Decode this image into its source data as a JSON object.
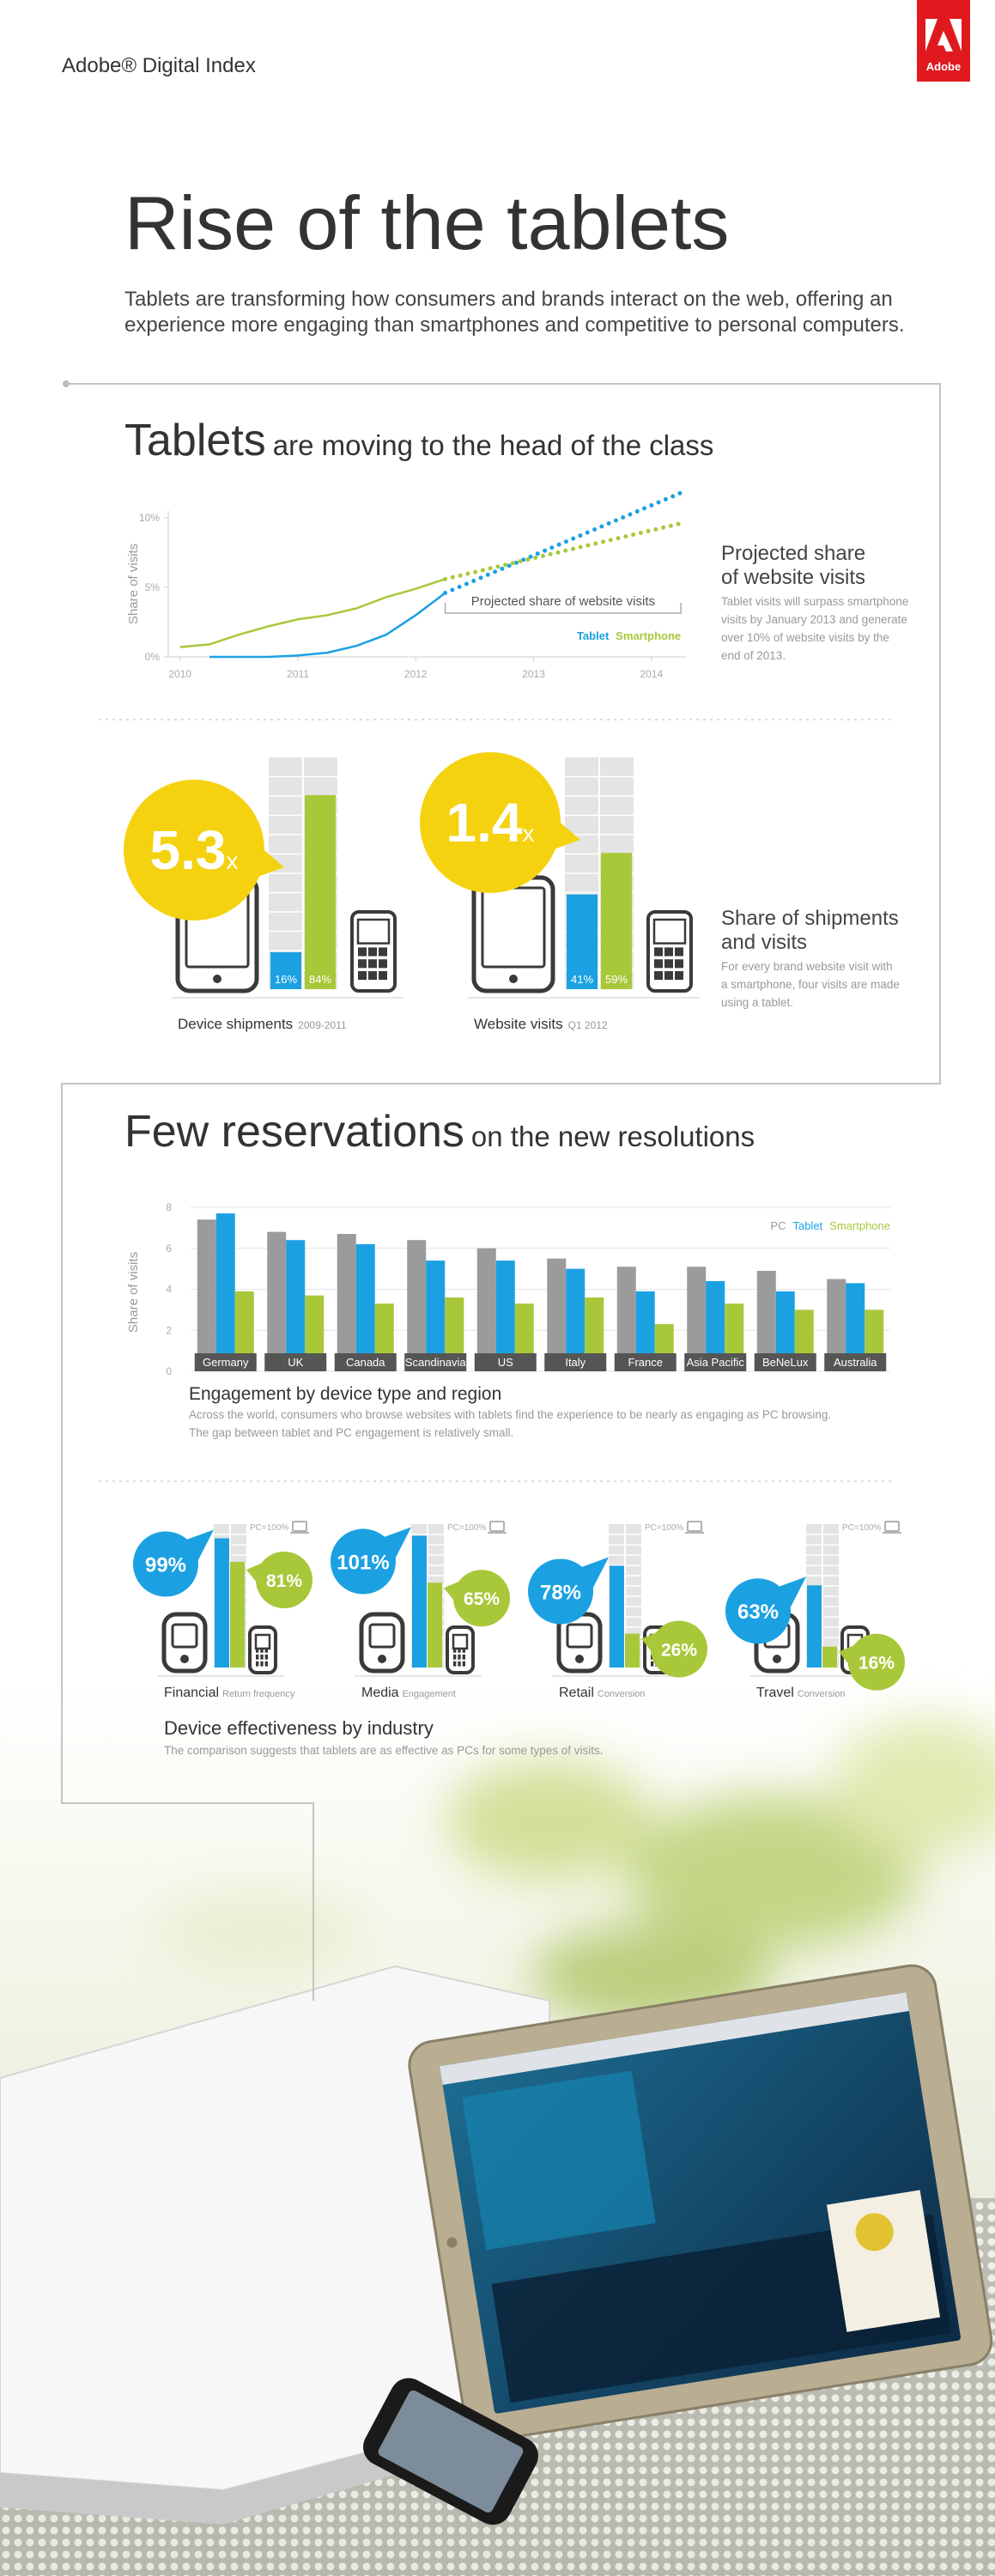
{
  "header": {
    "brand": "Adobe® Digital Index",
    "logo": "Adobe",
    "title": "Rise of the tablets",
    "intro": [
      "Tablets are transforming how consumers and brands interact on the web, offering an",
      "experience more engaging than smartphones and competitive to personal computers."
    ]
  },
  "section1": {
    "heading_strong": "Tablets",
    "heading": "are moving to the head of the class",
    "notes": [
      {
        "title": [
          "Projected share",
          "of website visits"
        ],
        "body": [
          "Tablet visits will surpass smartphone",
          "visits by January 2013 and generate",
          "over 10% of website visits by the",
          "end of 2013."
        ]
      },
      {
        "title": [
          "Share of shipments",
          "and visits"
        ],
        "body": [
          "For every brand website visit with",
          "a smartphone, four visits are made",
          "using a tablet."
        ]
      }
    ]
  },
  "section2": {
    "heading_strong": "Few reservations",
    "heading": "on the new resolutions"
  },
  "chart_data": [
    {
      "type": "line",
      "ylabel": "Share of visits",
      "annotation": "Projected share of website visits",
      "projected_from": 2012.25,
      "x": [
        2010,
        2010.25,
        2010.5,
        2010.75,
        2011,
        2011.25,
        2011.5,
        2011.75,
        2012,
        2012.25,
        2012.5,
        2012.75,
        2013,
        2013.25,
        2013.5,
        2013.75,
        2014,
        2014.25
      ],
      "series": [
        {
          "name": "Tablet",
          "color": "#1ba1e2",
          "values": [
            null,
            0,
            0,
            0,
            0.1,
            0.3,
            0.8,
            1.6,
            3.0,
            4.6,
            5.5,
            6.4,
            7.3,
            8.2,
            9.1,
            10.0,
            10.9,
            11.8
          ]
        },
        {
          "name": "Smartphone",
          "color": "#a8c83a",
          "values": [
            0.7,
            0.9,
            1.6,
            2.2,
            2.7,
            3.0,
            3.5,
            4.3,
            4.9,
            5.6,
            6.1,
            6.6,
            7.1,
            7.6,
            8.1,
            8.6,
            9.1,
            9.6
          ]
        }
      ],
      "xlim": [
        2009.9,
        2014.3
      ],
      "xticks": [
        2010,
        2011,
        2012,
        2013,
        2014
      ],
      "ylim": [
        0,
        10.5
      ],
      "yticks": [
        {
          "value": 0,
          "label": "0%"
        },
        {
          "value": 5,
          "label": "5%"
        },
        {
          "value": 10,
          "label": "10%"
        }
      ]
    },
    {
      "type": "share-bars",
      "caption": "Device shipments",
      "caption_note": "2009-2011",
      "ratio": 5.3,
      "ratio_suffix": "x",
      "values": [
        16,
        84
      ],
      "value_labels": [
        "16%",
        "84%"
      ],
      "colors": [
        "#1ba1e2",
        "#a8c83a"
      ],
      "ylim": [
        0,
        100
      ]
    },
    {
      "type": "share-bars",
      "caption": "Website visits",
      "caption_note": "Q1 2012",
      "ratio": 1.4,
      "ratio_suffix": "x",
      "values": [
        41,
        59
      ],
      "value_labels": [
        "41%",
        "59%"
      ],
      "colors": [
        "#1ba1e2",
        "#a8c83a"
      ],
      "ylim": [
        0,
        100
      ]
    },
    {
      "type": "grouped-bar",
      "title": "Engagement by device type and region",
      "subtitle": [
        "Across the world, consumers who browse websites with tablets find the experience to be nearly as engaging as PC browsing.",
        "The gap between tablet and PC engagement is relatively small."
      ],
      "ylabel": "Share of visits",
      "categories": [
        "Germany",
        "UK",
        "Canada",
        "Scandinavia",
        "US",
        "Italy",
        "France",
        "Asia Pacific",
        "BeNeLux",
        "Australia"
      ],
      "series": [
        {
          "name": "PC",
          "color": "#9b9b9b",
          "values": [
            7.4,
            6.8,
            6.7,
            6.4,
            6.0,
            5.5,
            5.1,
            5.1,
            4.9,
            4.5
          ]
        },
        {
          "name": "Tablet",
          "color": "#1ba1e2",
          "values": [
            7.7,
            6.4,
            6.2,
            5.4,
            5.4,
            5.0,
            3.9,
            4.4,
            3.9,
            4.3
          ]
        },
        {
          "name": "Smartphone",
          "color": "#a8c83a",
          "values": [
            3.9,
            3.7,
            3.3,
            3.6,
            3.3,
            3.6,
            2.3,
            3.3,
            3.0,
            3.0
          ]
        }
      ],
      "ylim": [
        0,
        8
      ],
      "yticks": [
        0,
        2,
        4,
        6,
        8
      ],
      "grid": true,
      "legend": "top-right"
    },
    {
      "type": "industry",
      "title": "Device effectiveness by industry",
      "subtitle": "The comparison suggests that tablets  are as effective as PCs for some types of visits.",
      "reference_label": "PC=100%",
      "categories": [
        "Financial",
        "Media",
        "Retail",
        "Travel"
      ],
      "metrics": [
        "Return frequency",
        "Engagement",
        "Conversion",
        "Conversion"
      ],
      "ylim": [
        0,
        100
      ],
      "tablet": {
        "color": "#1ba1e2",
        "values": [
          99,
          101,
          78,
          63
        ],
        "value_labels": [
          "99%",
          "101%",
          "78%",
          "63%"
        ]
      },
      "smartphone": {
        "color": "#a8c83a",
        "values": [
          81,
          65,
          26,
          16
        ],
        "value_labels": [
          "81%",
          "65%",
          "26%",
          "16%"
        ]
      }
    }
  ]
}
